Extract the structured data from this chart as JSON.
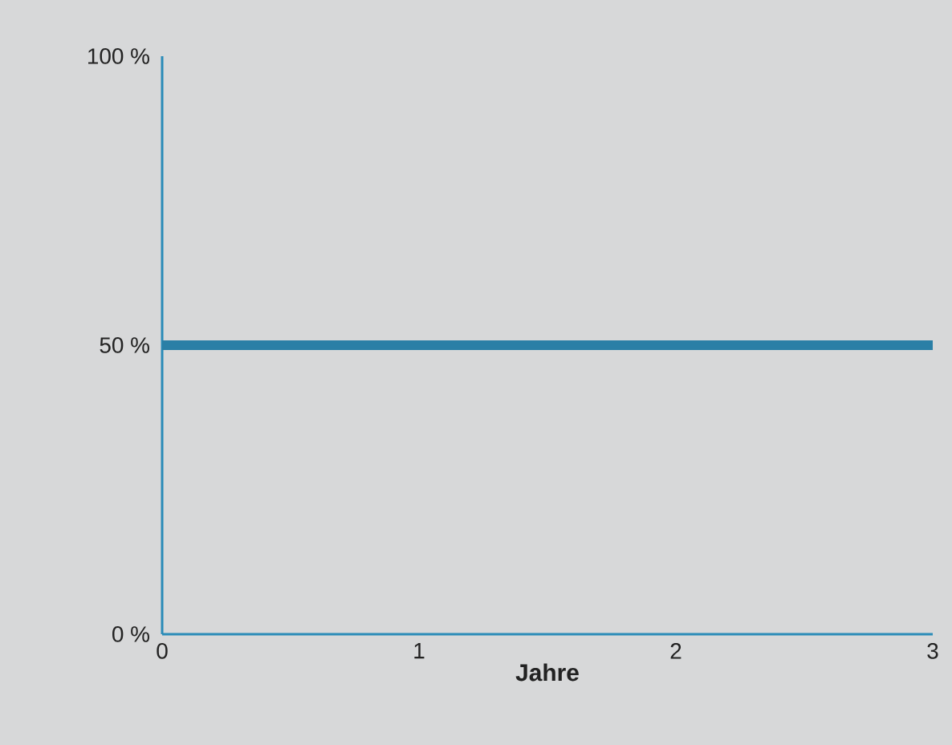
{
  "chart_data": {
    "type": "line",
    "xlabel": "Jahre",
    "x": [
      0,
      3
    ],
    "series": [
      {
        "color": "#2a7fa6",
        "values": [
          50,
          50
        ]
      }
    ],
    "xlim": [
      0,
      3
    ],
    "ylim": [
      0,
      100
    ],
    "xticks": [
      0,
      1,
      2,
      3
    ],
    "yticks": [
      {
        "value": 0,
        "label": "0 %"
      },
      {
        "value": 50,
        "label": "50 %"
      },
      {
        "value": 100,
        "label": "100 %"
      }
    ]
  }
}
